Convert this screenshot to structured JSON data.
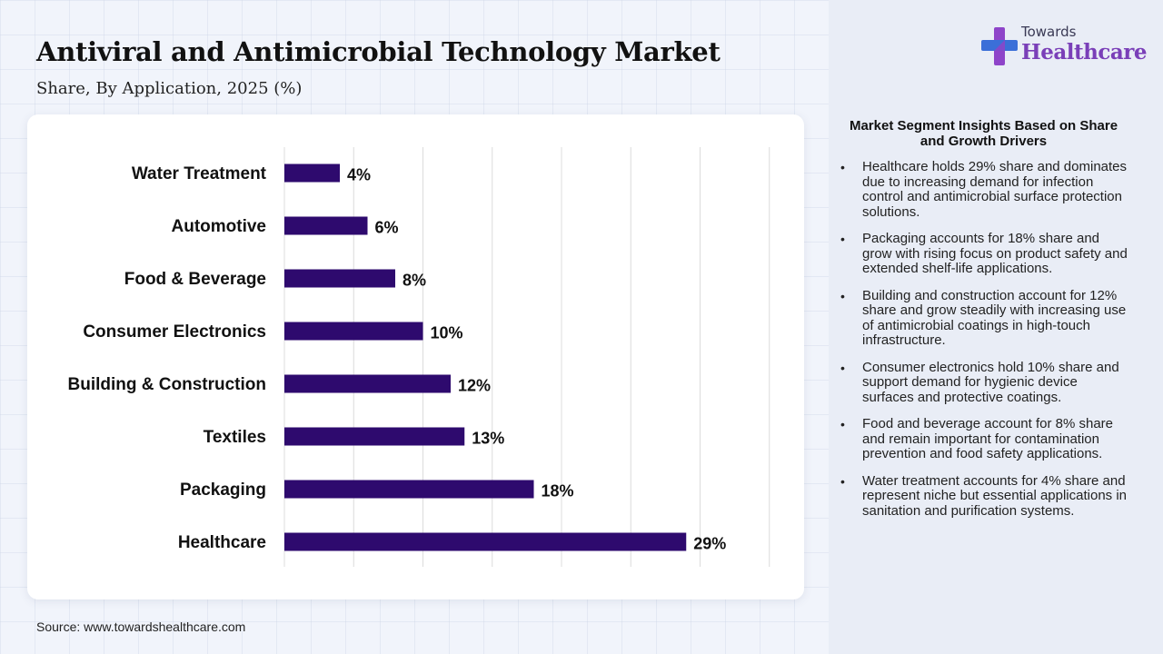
{
  "header": {
    "title": "Antiviral and Antimicrobial Technology Market",
    "subtitle": "Share, By Application, 2025 (%)"
  },
  "logo": {
    "top_text": "Towards",
    "main_text": "Healthcare"
  },
  "colors": {
    "bar": "#2e0a6e",
    "logo_accent": "#7a3fb8",
    "logo_mark_blue": "#3b6fd8",
    "logo_mark_purple": "#8e44c9"
  },
  "chart_data": {
    "type": "bar",
    "orientation": "horizontal",
    "categories": [
      "Water Treatment",
      "Automotive",
      "Food & Beverage",
      "Consumer Electronics",
      "Building & Construction",
      "Textiles",
      "Packaging",
      "Healthcare"
    ],
    "values": [
      4,
      6,
      8,
      10,
      12,
      13,
      18,
      29
    ],
    "labels": [
      "4%",
      "6%",
      "8%",
      "10%",
      "12%",
      "13%",
      "18%",
      "29%"
    ],
    "unit": "%",
    "xlim": [
      0,
      35
    ],
    "grid": true,
    "legend": false
  },
  "insights": {
    "title": "Market Segment Insights Based on Share and Growth Drivers",
    "items": [
      "Healthcare holds 29% share and dominates due to increasing demand for infection control and antimicrobial surface protection solutions.",
      "Packaging accounts for 18% share and grow with rising focus on product safety and extended shelf-life applications.",
      "Building and construction account for 12% share and grow steadily with increasing use of antimicrobial coatings in high-touch infrastructure.",
      "Consumer electronics hold 10% share and support demand for hygienic device surfaces and protective coatings.",
      "Food and beverage account for 8% share and remain important for contamination prevention and food safety applications.",
      "Water treatment accounts for 4% share and represent niche but essential applications in sanitation and purification systems."
    ]
  },
  "footer": {
    "source": "Source: www.towardshealthcare.com"
  }
}
